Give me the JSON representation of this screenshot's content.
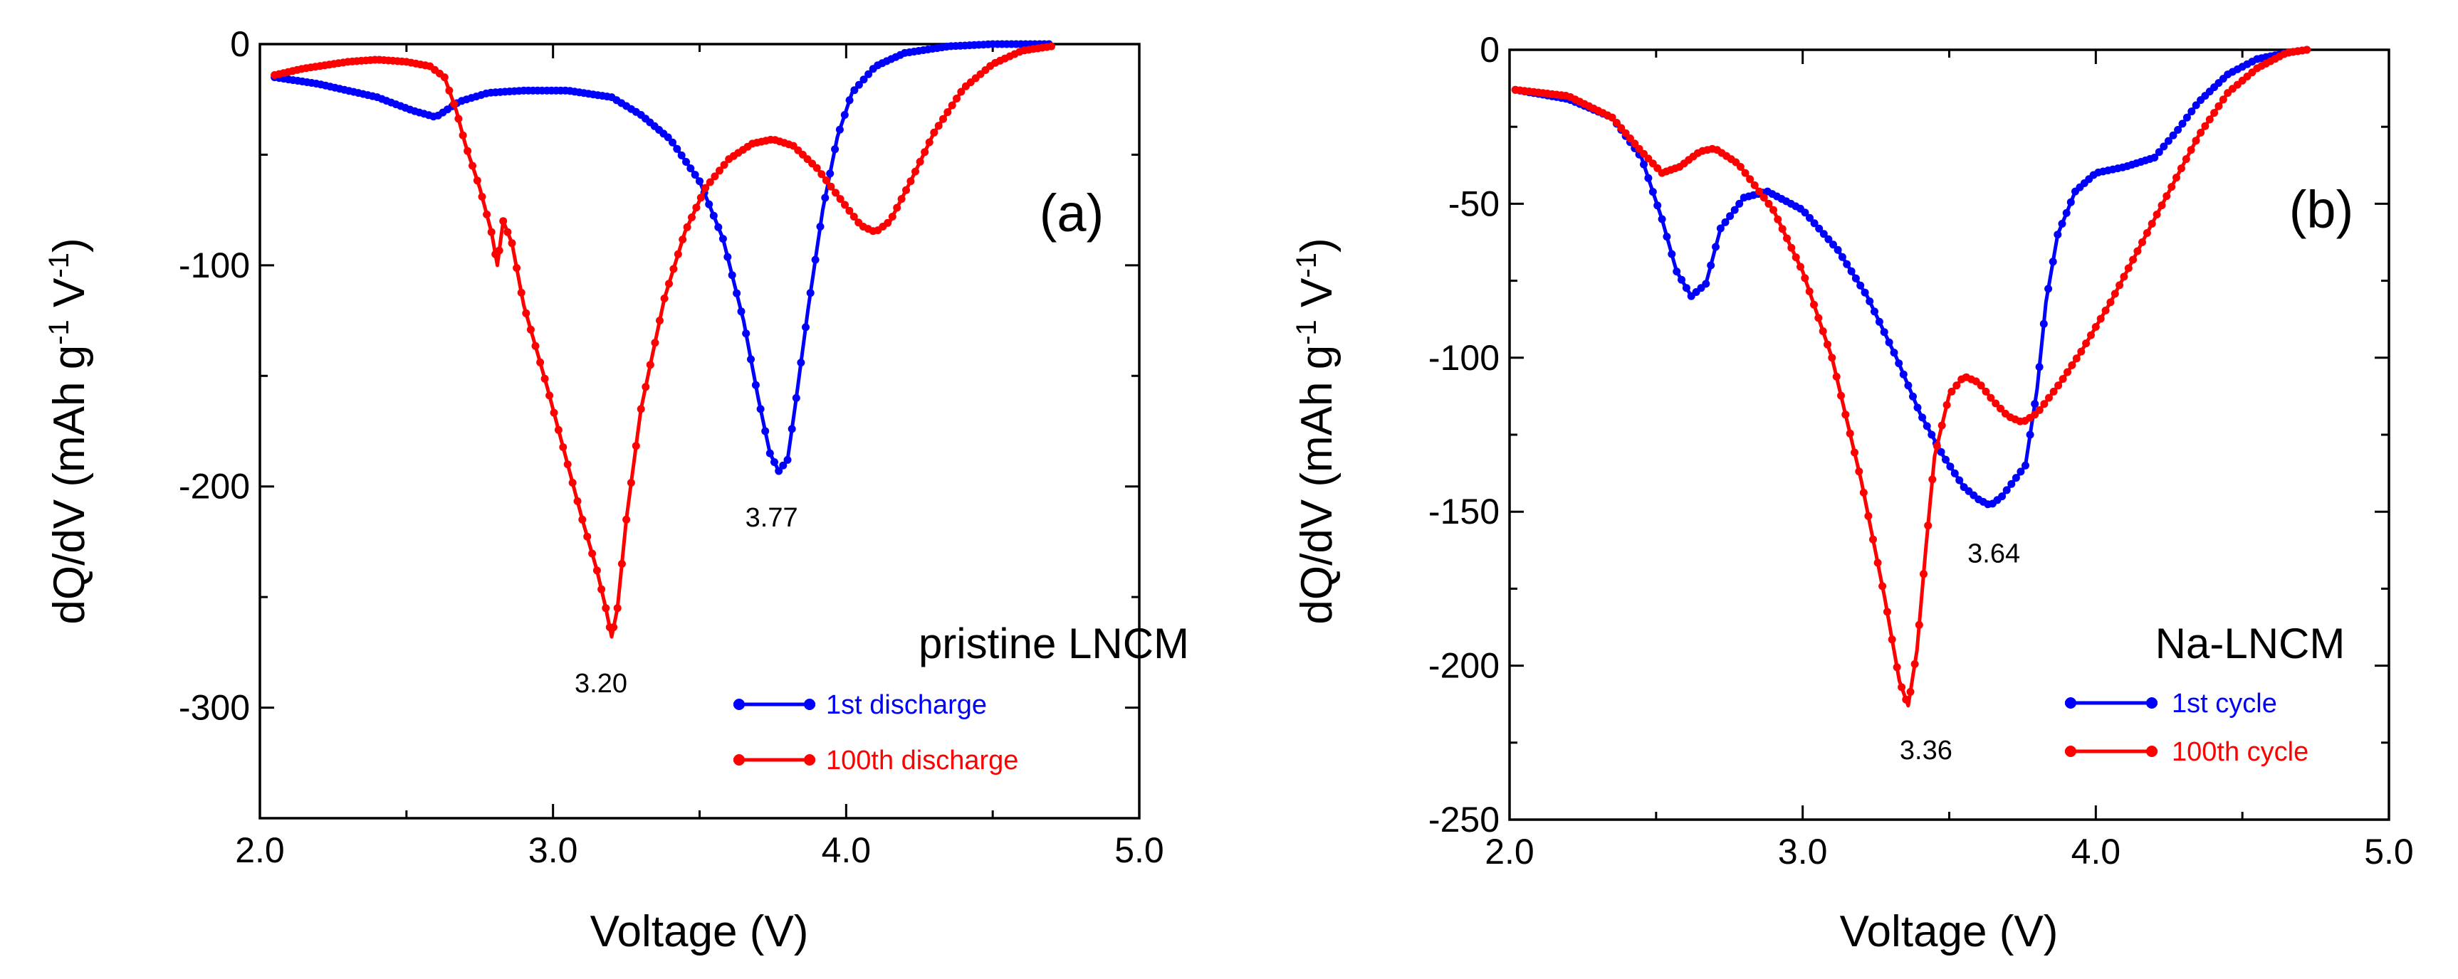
{
  "chart_data": [
    {
      "type": "line",
      "panel_label": "(a)",
      "xlabel": "Voltage (V)",
      "ylabel": "dQ/dV (mAh g-1 V-1)",
      "xlim": [
        2.0,
        5.0
      ],
      "ylim": [
        -350,
        0
      ],
      "xticks": [
        2.0,
        3.0,
        4.0,
        5.0
      ],
      "xtick_labels": [
        "2.0",
        "3.0",
        "4.0",
        "5.0"
      ],
      "yticks": [
        0,
        -100,
        -200,
        -300
      ],
      "ytick_labels": [
        "0",
        "-100",
        "-200",
        "-300"
      ],
      "legend_title": "pristine LNCM",
      "legend_position": "lower-right",
      "series": [
        {
          "name": "1st discharge",
          "color": "#0000ff",
          "x": [
            2.05,
            2.2,
            2.4,
            2.52,
            2.6,
            2.68,
            2.78,
            2.9,
            3.05,
            3.2,
            3.3,
            3.4,
            3.5,
            3.58,
            3.65,
            3.7,
            3.74,
            3.77,
            3.8,
            3.83,
            3.87,
            3.92,
            3.97,
            4.02,
            4.1,
            4.2,
            4.35,
            4.5,
            4.7
          ],
          "values": [
            -15,
            -18,
            -24,
            -30,
            -33,
            -26,
            -22,
            -21,
            -21,
            -24,
            -32,
            -43,
            -62,
            -88,
            -125,
            -160,
            -185,
            -193,
            -188,
            -160,
            -120,
            -75,
            -42,
            -22,
            -10,
            -4,
            -1,
            0,
            0
          ]
        },
        {
          "name": "100th discharge",
          "color": "#ff0000",
          "x": [
            2.05,
            2.15,
            2.3,
            2.4,
            2.5,
            2.58,
            2.63,
            2.67,
            2.7,
            2.75,
            2.79,
            2.81,
            2.83,
            2.86,
            2.9,
            2.98,
            3.05,
            3.1,
            3.15,
            3.18,
            3.2,
            3.22,
            3.25,
            3.3,
            3.38,
            3.45,
            3.52,
            3.6,
            3.68,
            3.75,
            3.82,
            3.9,
            3.98,
            4.05,
            4.1,
            4.15,
            4.22,
            4.3,
            4.4,
            4.5,
            4.6,
            4.7
          ],
          "values": [
            -14,
            -11,
            -8,
            -7,
            -8,
            -10,
            -15,
            -30,
            -45,
            -65,
            -85,
            -100,
            -80,
            -90,
            -118,
            -155,
            -190,
            -215,
            -238,
            -255,
            -268,
            -255,
            -215,
            -165,
            -115,
            -85,
            -65,
            -52,
            -45,
            -43,
            -46,
            -56,
            -70,
            -82,
            -85,
            -80,
            -62,
            -40,
            -20,
            -9,
            -3,
            -1
          ]
        }
      ],
      "annotations": [
        {
          "text": "3.77",
          "x": 3.77,
          "y": -193
        },
        {
          "text": "3.20",
          "x": 3.2,
          "y": -268
        }
      ]
    },
    {
      "type": "line",
      "panel_label": "(b)",
      "xlabel": "Voltage (V)",
      "ylabel": "dQ/dV (mAh g-1 V-1)",
      "xlim": [
        2.0,
        5.0
      ],
      "ylim": [
        -250,
        0
      ],
      "xticks": [
        2.0,
        3.0,
        4.0,
        5.0
      ],
      "xtick_labels": [
        "2.0",
        "3.0",
        "4.0",
        "5.0"
      ],
      "yticks": [
        0,
        -50,
        -100,
        -150,
        -200,
        -250
      ],
      "ytick_labels": [
        "0",
        "-50",
        "-100",
        "-150",
        "-200",
        "-250"
      ],
      "legend_title": "Na-LNCM",
      "legend_position": "lower-right",
      "series": [
        {
          "name": "1st cycle",
          "color": "#0000ff",
          "x": [
            2.02,
            2.2,
            2.35,
            2.45,
            2.52,
            2.57,
            2.62,
            2.67,
            2.72,
            2.8,
            2.88,
            3.0,
            3.12,
            3.22,
            3.32,
            3.4,
            3.48,
            3.55,
            3.6,
            3.64,
            3.68,
            3.72,
            3.76,
            3.8,
            3.83,
            3.87,
            3.93,
            4.0,
            4.1,
            4.2,
            4.28,
            4.35,
            4.45,
            4.55,
            4.65,
            4.72
          ],
          "values": [
            -13,
            -16,
            -22,
            -35,
            -55,
            -72,
            -80,
            -76,
            -58,
            -48,
            -46,
            -52,
            -65,
            -80,
            -100,
            -118,
            -132,
            -142,
            -146,
            -148,
            -145,
            -140,
            -135,
            -110,
            -82,
            -60,
            -46,
            -40,
            -38,
            -35,
            -26,
            -17,
            -8,
            -3,
            -1,
            0
          ]
        },
        {
          "name": "100th cycle",
          "color": "#ff0000",
          "x": [
            2.02,
            2.2,
            2.35,
            2.45,
            2.52,
            2.58,
            2.65,
            2.7,
            2.78,
            2.9,
            3.0,
            3.1,
            3.2,
            3.28,
            3.33,
            3.36,
            3.39,
            3.42,
            3.45,
            3.5,
            3.55,
            3.6,
            3.65,
            3.7,
            3.75,
            3.8,
            3.88,
            3.95,
            4.05,
            4.15,
            4.25,
            4.35,
            4.45,
            4.55,
            4.65,
            4.72
          ],
          "values": [
            -13,
            -15,
            -22,
            -33,
            -40,
            -38,
            -33,
            -32,
            -37,
            -52,
            -72,
            -100,
            -140,
            -178,
            -205,
            -213,
            -195,
            -162,
            -132,
            -112,
            -106,
            -108,
            -114,
            -119,
            -121,
            -118,
            -108,
            -98,
            -82,
            -64,
            -46,
            -28,
            -14,
            -6,
            -1,
            0
          ]
        }
      ],
      "annotations": [
        {
          "text": "3.64",
          "x": 3.64,
          "y": -148
        },
        {
          "text": "3.36",
          "x": 3.36,
          "y": -213
        }
      ]
    }
  ]
}
